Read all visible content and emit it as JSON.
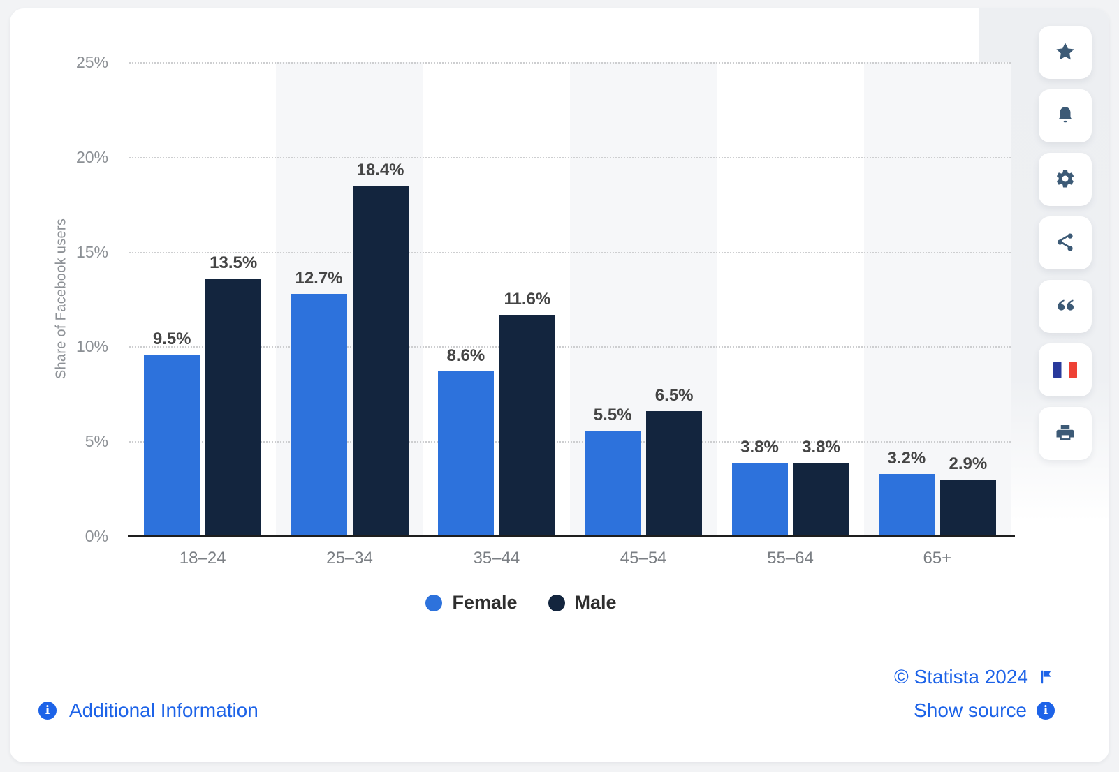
{
  "chart_data": {
    "type": "bar",
    "title": "",
    "categories": [
      "18–24",
      "25–34",
      "35–44",
      "45–54",
      "55–64",
      "65+"
    ],
    "series": [
      {
        "name": "Female",
        "color": "#2d72dc",
        "values": [
          9.5,
          12.7,
          8.6,
          5.5,
          3.8,
          3.2
        ]
      },
      {
        "name": "Male",
        "color": "#13253e",
        "values": [
          13.5,
          18.4,
          11.6,
          6.5,
          3.8,
          2.9
        ]
      }
    ],
    "xlabel": "",
    "ylabel": "Share of Facebook users",
    "ylim": [
      0,
      25
    ],
    "yticks": [
      0,
      5,
      10,
      15,
      20,
      25
    ],
    "ytick_suffix": "%",
    "datalabel_suffix": "%",
    "grid": "horizontal-dotted",
    "plot_band_color": "#f6f7f9",
    "banded_columns": [
      1,
      3,
      5
    ],
    "legend_position": "bottom"
  },
  "toolbar": {
    "icons": [
      {
        "name": "favorite-star"
      },
      {
        "name": "notification-bell"
      },
      {
        "name": "settings-gear"
      },
      {
        "name": "share-nodes"
      },
      {
        "name": "citation-quote"
      },
      {
        "name": "language-french-flag"
      },
      {
        "name": "print"
      }
    ]
  },
  "footer": {
    "additional_info_label": "Additional Information",
    "copyright_label": "© Statista 2024",
    "show_source_label": "Show source"
  },
  "colors": {
    "link_blue": "#1d63e8",
    "icon_slate": "#3c5a76",
    "female_bar": "#2d72dc",
    "male_bar": "#13253e",
    "axis_line": "#1e1e1e"
  }
}
